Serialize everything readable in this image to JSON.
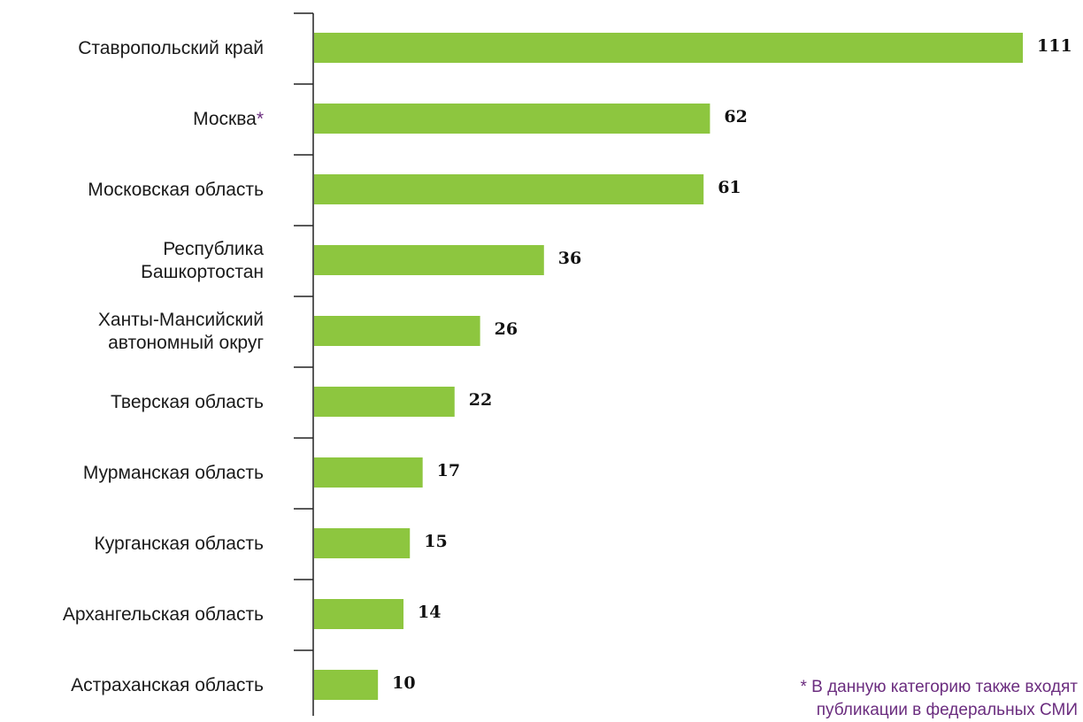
{
  "chart_data": {
    "type": "bar",
    "orientation": "horizontal",
    "categories": [
      [
        "Ставропольский край"
      ],
      [
        "Москва"
      ],
      [
        "Московская область"
      ],
      [
        "Республика",
        "Башкортостан"
      ],
      [
        "Ханты-Мансийский",
        "автономный округ"
      ],
      [
        "Тверская область"
      ],
      [
        "Мурманская область"
      ],
      [
        "Курганская область"
      ],
      [
        "Архангельская область"
      ],
      [
        "Астраханская область"
      ]
    ],
    "values": [
      111,
      62,
      61,
      36,
      26,
      22,
      17,
      15,
      14,
      10
    ],
    "value_labels": [
      "111",
      "62",
      "61",
      "36",
      "26",
      "22",
      "17",
      "15",
      "14",
      "10"
    ],
    "asterisk_category_index": 1,
    "asterisk": "*",
    "xlim": [
      0,
      111
    ],
    "grid": false,
    "legend": "none"
  },
  "footnote": {
    "asterisk": "*",
    "lines": [
      "В данную категорию также входят",
      "публикации в федеральных СМИ"
    ]
  },
  "colors": {
    "bar": "#8dc63f",
    "axis": "#222222",
    "asterisk": "#6b2d7f",
    "footnote": "#6b2d7f"
  }
}
